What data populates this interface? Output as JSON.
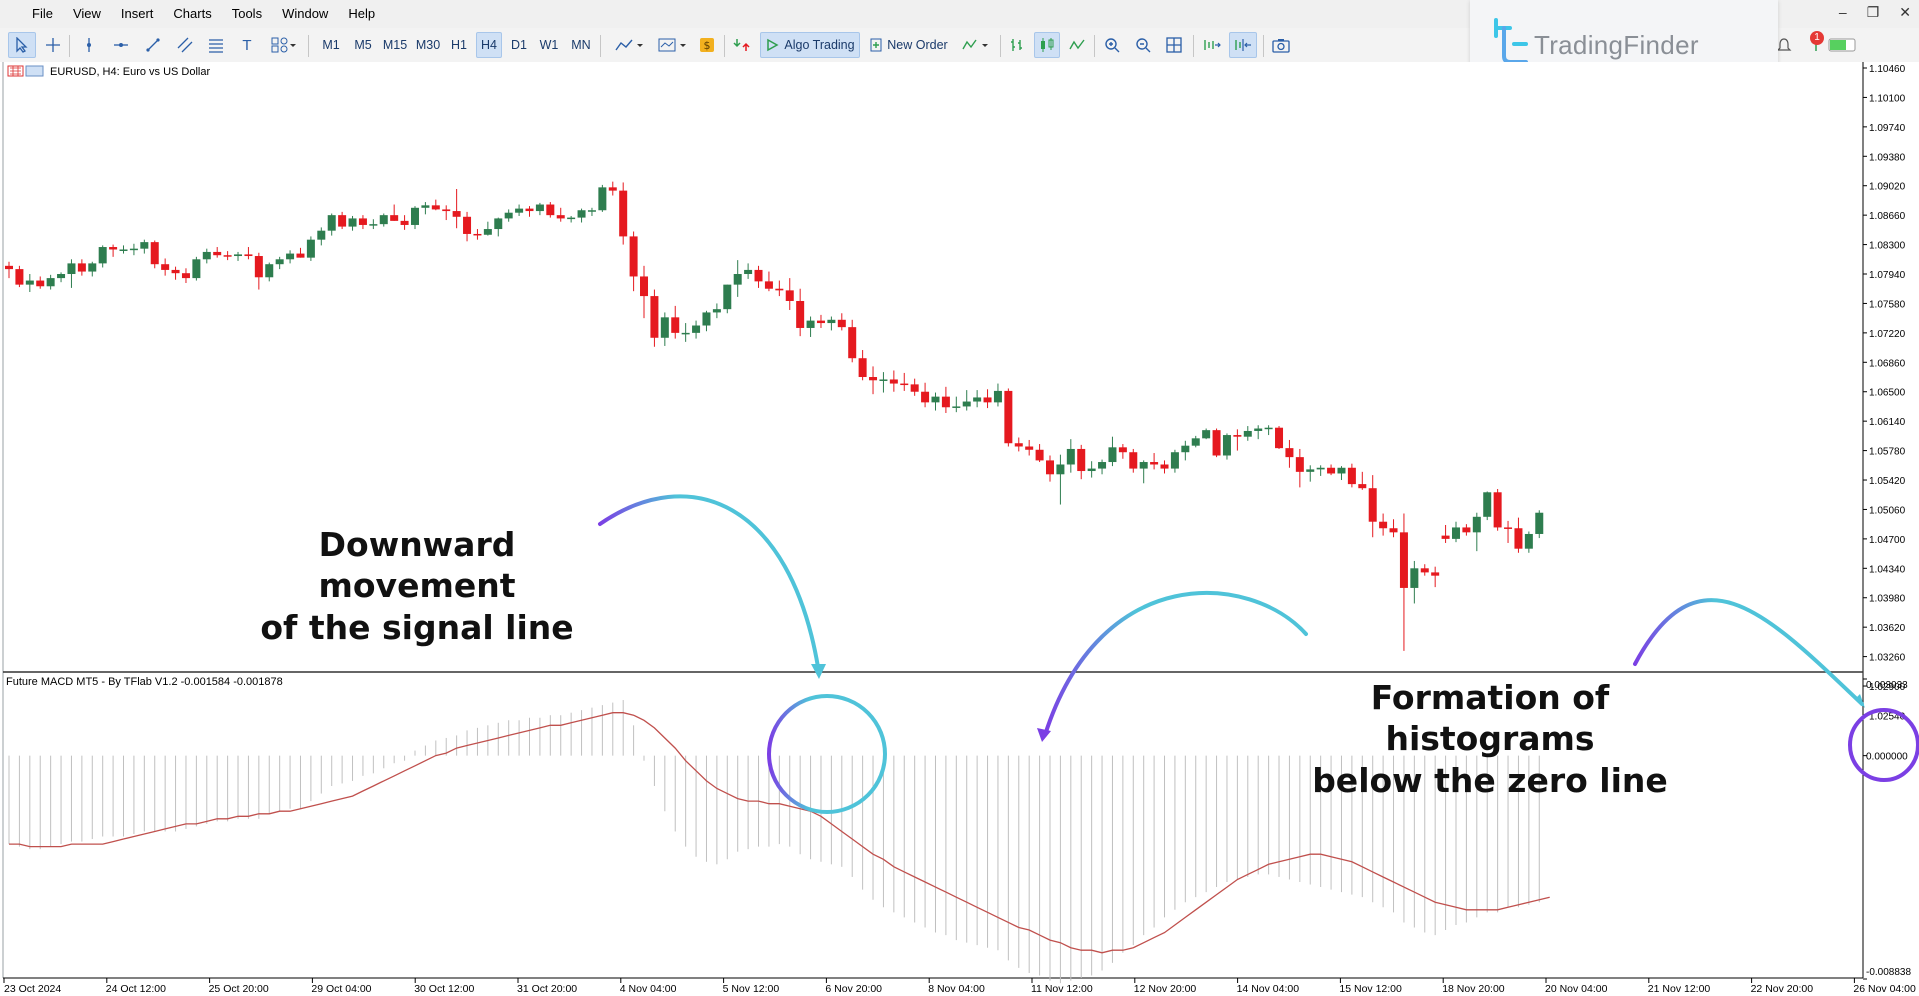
{
  "menu": [
    "File",
    "View",
    "Insert",
    "Charts",
    "Tools",
    "Window",
    "Help"
  ],
  "timeframes": [
    "M1",
    "M5",
    "M15",
    "M30",
    "H1",
    "H4",
    "D1",
    "W1",
    "MN"
  ],
  "active_timeframe": "H4",
  "toolbar": {
    "algo_trading": "Algo Trading",
    "new_order": "New Order"
  },
  "logo": {
    "text": "TradingFinder",
    "badge": "1"
  },
  "chart_header": "EURUSD, H4:  Euro vs US Dollar",
  "indicator_header": "Future MACD MT5 - By TFlab V1.2 -0.001584 -0.001878",
  "price_ticks": [
    "1.10460",
    "1.10100",
    "1.09740",
    "1.09380",
    "1.09020",
    "1.08660",
    "1.08300",
    "1.07940",
    "1.07580",
    "1.07220",
    "1.06860",
    "1.06500",
    "1.06140",
    "1.05780",
    "1.05420",
    "1.05060",
    "1.04700",
    "1.04340",
    "1.03980",
    "1.03620",
    "1.03260",
    "1.02900",
    "1.02540"
  ],
  "indicator_ticks": [
    "0.003033",
    "0.000000",
    "-0.008838"
  ],
  "time_ticks": [
    "23 Oct 2024",
    "24 Oct 12:00",
    "25 Oct 20:00",
    "29 Oct 04:00",
    "30 Oct 12:00",
    "31 Oct 20:00",
    "4 Nov 04:00",
    "5 Nov 12:00",
    "6 Nov 20:00",
    "8 Nov 04:00",
    "11 Nov 12:00",
    "12 Nov 20:00",
    "14 Nov 04:00",
    "15 Nov 12:00",
    "18 Nov 20:00",
    "20 Nov 04:00",
    "21 Nov 12:00",
    "22 Nov 20:00",
    "26 Nov 04:00"
  ],
  "annotations": {
    "signal_line": [
      "Downward movement",
      "of the signal line"
    ],
    "histograms": [
      "Formation of histograms",
      "below the zero line"
    ]
  },
  "colors": {
    "bull": "#2e7d4f",
    "bear": "#e5191f",
    "signal": "#c0504d",
    "histogram": "#c0c0c0",
    "arrow": "#4fc3d9",
    "arrow_accent": "#7b3fe4"
  },
  "chart_data": {
    "type": "candlestick",
    "symbol": "EURUSD",
    "timeframe": "H4",
    "ylim": [
      1.0246,
      1.1046
    ],
    "candles": [
      [
        1.0804,
        1.0809,
        1.0789,
        1.08
      ],
      [
        1.08,
        1.0804,
        1.0778,
        1.0781
      ],
      [
        1.0781,
        1.0794,
        1.0772,
        1.0786
      ],
      [
        1.0786,
        1.0791,
        1.0776,
        1.0779
      ],
      [
        1.0779,
        1.0793,
        1.0775,
        1.0789
      ],
      [
        1.0789,
        1.0796,
        1.0784,
        1.0794
      ],
      [
        1.0794,
        1.0812,
        1.0777,
        1.0807
      ],
      [
        1.0807,
        1.0812,
        1.0792,
        1.0797
      ],
      [
        1.0797,
        1.0809,
        1.0791,
        1.0807
      ],
      [
        1.0807,
        1.0829,
        1.0802,
        1.0827
      ],
      [
        1.0827,
        1.083,
        1.0815,
        1.0824
      ],
      [
        1.0824,
        1.0829,
        1.0819,
        1.0824
      ],
      [
        1.0824,
        1.0831,
        1.0817,
        1.0825
      ],
      [
        1.0825,
        1.0836,
        1.0819,
        1.0833
      ],
      [
        1.0833,
        1.0835,
        1.0801,
        1.0806
      ],
      [
        1.0806,
        1.0813,
        1.0792,
        1.0799
      ],
      [
        1.0799,
        1.0803,
        1.0787,
        1.0795
      ],
      [
        1.0795,
        1.0801,
        1.0783,
        1.0789
      ],
      [
        1.0789,
        1.0815,
        1.0786,
        1.0812
      ],
      [
        1.0812,
        1.0825,
        1.0807,
        1.0821
      ],
      [
        1.0821,
        1.0827,
        1.0814,
        1.0817
      ],
      [
        1.0817,
        1.0822,
        1.0811,
        1.0816
      ],
      [
        1.0816,
        1.0821,
        1.081,
        1.0818
      ],
      [
        1.0818,
        1.0827,
        1.0812,
        1.0816
      ],
      [
        1.0816,
        1.082,
        1.0775,
        1.079
      ],
      [
        1.079,
        1.0808,
        1.0785,
        1.0806
      ],
      [
        1.0806,
        1.0815,
        1.08,
        1.0812
      ],
      [
        1.0812,
        1.0823,
        1.0807,
        1.0819
      ],
      [
        1.0819,
        1.0826,
        1.0814,
        1.0814
      ],
      [
        1.0814,
        1.084,
        1.081,
        1.0836
      ],
      [
        1.0836,
        1.0851,
        1.0829,
        1.0847
      ],
      [
        1.0847,
        1.0868,
        1.0841,
        1.0866
      ],
      [
        1.0866,
        1.087,
        1.0849,
        1.0852
      ],
      [
        1.0852,
        1.0865,
        1.0847,
        1.0862
      ],
      [
        1.0862,
        1.0866,
        1.0849,
        1.0854
      ],
      [
        1.0854,
        1.0861,
        1.0849,
        1.0855
      ],
      [
        1.0855,
        1.0868,
        1.0852,
        1.0866
      ],
      [
        1.0866,
        1.0879,
        1.0859,
        1.0859
      ],
      [
        1.0859,
        1.0866,
        1.0848,
        1.0854
      ],
      [
        1.0854,
        1.0877,
        1.0849,
        1.0875
      ],
      [
        1.0875,
        1.0882,
        1.0867,
        1.0878
      ],
      [
        1.0878,
        1.0885,
        1.0872,
        1.0873
      ],
      [
        1.0873,
        1.0878,
        1.086,
        1.0871
      ],
      [
        1.0871,
        1.0898,
        1.085,
        1.0864
      ],
      [
        1.0864,
        1.087,
        1.0834,
        1.0843
      ],
      [
        1.0843,
        1.0849,
        1.0836,
        1.0842
      ],
      [
        1.0842,
        1.0858,
        1.0841,
        1.0849
      ],
      [
        1.0849,
        1.0863,
        1.084,
        1.0862
      ],
      [
        1.0862,
        1.0873,
        1.0858,
        1.0869
      ],
      [
        1.0869,
        1.0879,
        1.0865,
        1.0874
      ],
      [
        1.0874,
        1.0877,
        1.0864,
        1.0871
      ],
      [
        1.0871,
        1.0881,
        1.0866,
        1.0879
      ],
      [
        1.0879,
        1.0882,
        1.0863,
        1.0866
      ],
      [
        1.0866,
        1.0875,
        1.0858,
        1.0862
      ],
      [
        1.0862,
        1.0865,
        1.0857,
        1.0863
      ],
      [
        1.0863,
        1.0874,
        1.0857,
        1.0872
      ],
      [
        1.0872,
        1.0875,
        1.0865,
        1.0872
      ],
      [
        1.0872,
        1.0903,
        1.087,
        1.09
      ],
      [
        1.09,
        1.0907,
        1.089,
        1.0896
      ],
      [
        1.0896,
        1.0906,
        1.083,
        1.084
      ],
      [
        1.084,
        1.0846,
        1.0773,
        1.0791
      ],
      [
        1.0791,
        1.0804,
        1.074,
        1.0767
      ],
      [
        1.0767,
        1.0775,
        1.0705,
        1.0716
      ],
      [
        1.0716,
        1.0747,
        1.0706,
        1.0741
      ],
      [
        1.0741,
        1.0755,
        1.0715,
        1.0722
      ],
      [
        1.0722,
        1.0734,
        1.0711,
        1.0722
      ],
      [
        1.0722,
        1.0737,
        1.0715,
        1.0731
      ],
      [
        1.0731,
        1.0749,
        1.0724,
        1.0747
      ],
      [
        1.0747,
        1.0758,
        1.074,
        1.0751
      ],
      [
        1.0751,
        1.0781,
        1.0746,
        1.0781
      ],
      [
        1.0781,
        1.0811,
        1.0766,
        1.0794
      ],
      [
        1.0794,
        1.0807,
        1.0788,
        1.0799
      ],
      [
        1.0799,
        1.0804,
        1.0777,
        1.0785
      ],
      [
        1.0785,
        1.0797,
        1.0773,
        1.0776
      ],
      [
        1.0776,
        1.0786,
        1.0767,
        1.0774
      ],
      [
        1.0774,
        1.0789,
        1.075,
        1.0761
      ],
      [
        1.0761,
        1.0776,
        1.0718,
        1.0728
      ],
      [
        1.0728,
        1.0742,
        1.0717,
        1.0737
      ],
      [
        1.0737,
        1.0744,
        1.0728,
        1.0734
      ],
      [
        1.0734,
        1.0742,
        1.0725,
        1.0738
      ],
      [
        1.0738,
        1.0746,
        1.0725,
        1.0729
      ],
      [
        1.0729,
        1.0738,
        1.0686,
        1.0691
      ],
      [
        1.0691,
        1.0701,
        1.0664,
        1.0668
      ],
      [
        1.0668,
        1.0681,
        1.0647,
        1.0664
      ],
      [
        1.0664,
        1.0674,
        1.0649,
        1.0665
      ],
      [
        1.0665,
        1.0676,
        1.065,
        1.066
      ],
      [
        1.066,
        1.0673,
        1.0651,
        1.0659
      ],
      [
        1.0659,
        1.0666,
        1.0645,
        1.065
      ],
      [
        1.065,
        1.0661,
        1.0631,
        1.0637
      ],
      [
        1.0637,
        1.0649,
        1.0627,
        1.0644
      ],
      [
        1.0644,
        1.0656,
        1.0624,
        1.0631
      ],
      [
        1.0631,
        1.0644,
        1.0625,
        1.0632
      ],
      [
        1.0632,
        1.0652,
        1.0627,
        1.0638
      ],
      [
        1.0638,
        1.0652,
        1.0631,
        1.0643
      ],
      [
        1.0643,
        1.0653,
        1.063,
        1.0637
      ],
      [
        1.0637,
        1.066,
        1.0632,
        1.0651
      ],
      [
        1.0651,
        1.0654,
        1.0583,
        1.0587
      ],
      [
        1.0587,
        1.0594,
        1.0577,
        1.0583
      ],
      [
        1.0583,
        1.0591,
        1.0572,
        1.0579
      ],
      [
        1.0579,
        1.0586,
        1.0564,
        1.0566
      ],
      [
        1.0566,
        1.0572,
        1.054,
        1.0549
      ],
      [
        1.0549,
        1.0573,
        1.0512,
        1.0561
      ],
      [
        1.0561,
        1.0592,
        1.0551,
        1.058
      ],
      [
        1.058,
        1.0585,
        1.0543,
        1.0553
      ],
      [
        1.0553,
        1.0565,
        1.0545,
        1.0556
      ],
      [
        1.0556,
        1.0567,
        1.0549,
        1.0564
      ],
      [
        1.0564,
        1.0595,
        1.0559,
        1.0582
      ],
      [
        1.0582,
        1.0586,
        1.0568,
        1.0576
      ],
      [
        1.0576,
        1.058,
        1.0551,
        1.0556
      ],
      [
        1.0556,
        1.0566,
        1.0538,
        1.0564
      ],
      [
        1.0564,
        1.0575,
        1.0555,
        1.0561
      ],
      [
        1.0561,
        1.0566,
        1.055,
        1.0556
      ],
      [
        1.0556,
        1.0579,
        1.0551,
        1.0576
      ],
      [
        1.0576,
        1.059,
        1.0566,
        1.0584
      ],
      [
        1.0584,
        1.0596,
        1.0582,
        1.0593
      ],
      [
        1.0593,
        1.0605,
        1.0592,
        1.0603
      ],
      [
        1.0603,
        1.0605,
        1.057,
        1.0572
      ],
      [
        1.0572,
        1.0599,
        1.0567,
        1.0597
      ],
      [
        1.0597,
        1.0604,
        1.0578,
        1.0595
      ],
      [
        1.0595,
        1.0608,
        1.059,
        1.0602
      ],
      [
        1.0602,
        1.0609,
        1.0592,
        1.0605
      ],
      [
        1.0605,
        1.0609,
        1.0597,
        1.0606
      ],
      [
        1.0606,
        1.0608,
        1.058,
        1.0581
      ],
      [
        1.0581,
        1.0591,
        1.0557,
        1.057
      ],
      [
        1.057,
        1.058,
        1.0533,
        1.0552
      ],
      [
        1.0552,
        1.056,
        1.054,
        1.0555
      ],
      [
        1.0555,
        1.056,
        1.0547,
        1.0557
      ],
      [
        1.0557,
        1.0561,
        1.0548,
        1.055
      ],
      [
        1.055,
        1.0559,
        1.0542,
        1.0557
      ],
      [
        1.0557,
        1.0562,
        1.0533,
        1.0537
      ],
      [
        1.0537,
        1.0552,
        1.053,
        1.0532
      ],
      [
        1.0532,
        1.0548,
        1.0472,
        1.0491
      ],
      [
        1.0491,
        1.0501,
        1.0474,
        1.0483
      ],
      [
        1.0483,
        1.0494,
        1.0472,
        1.0478
      ],
      [
        1.0478,
        1.0501,
        1.0333,
        1.041
      ],
      [
        1.041,
        1.0443,
        1.0391,
        1.0434
      ],
      [
        1.0434,
        1.0439,
        1.0425,
        1.0429
      ],
      [
        1.0429,
        1.0436,
        1.0411,
        1.0425
      ],
      [
        1.0474,
        1.0487,
        1.0465,
        1.047
      ],
      [
        1.047,
        1.0491,
        1.0466,
        1.0484
      ],
      [
        1.0484,
        1.0488,
        1.0474,
        1.0478
      ],
      [
        1.0478,
        1.0502,
        1.0455,
        1.0497
      ],
      [
        1.0497,
        1.0528,
        1.0493,
        1.0527
      ],
      [
        1.0527,
        1.0531,
        1.048,
        1.0484
      ],
      [
        1.0484,
        1.0492,
        1.0465,
        1.0483
      ],
      [
        1.0483,
        1.0496,
        1.0453,
        1.0458
      ],
      [
        1.0458,
        1.0479,
        1.0453,
        1.0476
      ],
      [
        1.0476,
        1.0505,
        1.0471,
        1.0502
      ]
    ],
    "indicator": {
      "name": "Future MACD MT5 - By TFlab V1.2",
      "values": [
        -0.001584,
        -0.001878
      ],
      "ylim": [
        -0.008838,
        0.003033
      ],
      "histogram": [
        -0.0035,
        -0.0036,
        -0.0037,
        -0.0037,
        -0.0036,
        -0.0035,
        -0.0034,
        -0.0034,
        -0.0033,
        -0.0032,
        -0.0032,
        -0.0032,
        -0.0031,
        -0.003,
        -0.003,
        -0.003,
        -0.003,
        -0.0029,
        -0.0028,
        -0.0027,
        -0.0026,
        -0.0026,
        -0.0025,
        -0.0025,
        -0.0025,
        -0.0023,
        -0.0022,
        -0.0021,
        -0.0021,
        -0.0018,
        -0.0015,
        -0.0012,
        -0.0011,
        -0.001,
        -0.0008,
        -0.0007,
        -0.0005,
        -0.0003,
        -0.0002,
        0.0002,
        0.0004,
        0.0006,
        0.0007,
        0.0008,
        0.001,
        0.0011,
        0.0012,
        0.0013,
        0.0014,
        0.0014,
        0.0015,
        0.0015,
        0.0016,
        0.0016,
        0.0017,
        0.0018,
        0.0019,
        0.002,
        0.0021,
        0.0022,
        0.0012,
        -0.0002,
        -0.0012,
        -0.0022,
        -0.003,
        -0.0036,
        -0.004,
        -0.0042,
        -0.0043,
        -0.0041,
        -0.0038,
        -0.0037,
        -0.0036,
        -0.0036,
        -0.0035,
        -0.0036,
        -0.0039,
        -0.0041,
        -0.0042,
        -0.0043,
        -0.0044,
        -0.0048,
        -0.0053,
        -0.0057,
        -0.006,
        -0.0062,
        -0.0064,
        -0.0066,
        -0.0068,
        -0.007,
        -0.0071,
        -0.0073,
        -0.0074,
        -0.0075,
        -0.0076,
        -0.0077,
        -0.0081,
        -0.0084,
        -0.0086,
        -0.0087,
        -0.0089,
        -0.009,
        -0.0089,
        -0.0088,
        -0.0087,
        -0.0085,
        -0.0082,
        -0.0078,
        -0.0075,
        -0.0071,
        -0.0068,
        -0.0064,
        -0.0061,
        -0.0058,
        -0.0056,
        -0.0054,
        -0.0052,
        -0.005,
        -0.0049,
        -0.0048,
        -0.0047,
        -0.0047,
        -0.0048,
        -0.0049,
        -0.005,
        -0.0051,
        -0.0052,
        -0.0053,
        -0.0054,
        -0.0055,
        -0.0056,
        -0.0058,
        -0.006,
        -0.0062,
        -0.0066,
        -0.0068,
        -0.007,
        -0.0071,
        -0.0069,
        -0.0067,
        -0.0066,
        -0.0064,
        -0.0062,
        -0.0062,
        -0.006,
        -0.006,
        -0.0059,
        -0.0058
      ],
      "signal": [
        -0.0035,
        -0.0035,
        -0.0036,
        -0.0036,
        -0.0036,
        -0.0036,
        -0.0035,
        -0.0035,
        -0.0035,
        -0.0035,
        -0.0034,
        -0.0033,
        -0.0032,
        -0.0031,
        -0.003,
        -0.0029,
        -0.0028,
        -0.0027,
        -0.0027,
        -0.0026,
        -0.0025,
        -0.0025,
        -0.0024,
        -0.0024,
        -0.0023,
        -0.0023,
        -0.0022,
        -0.0022,
        -0.0021,
        -0.002,
        -0.0019,
        -0.0018,
        -0.0017,
        -0.0016,
        -0.0014,
        -0.0012,
        -0.001,
        -0.0008,
        -0.0006,
        -0.0004,
        -0.0002,
        0.0,
        0.0001,
        0.0003,
        0.0004,
        0.0005,
        0.0006,
        0.0007,
        0.0008,
        0.0009,
        0.001,
        0.0011,
        0.0012,
        0.0012,
        0.0013,
        0.0014,
        0.0015,
        0.0016,
        0.0017,
        0.0017,
        0.0016,
        0.0014,
        0.0011,
        0.0007,
        0.0003,
        -0.0002,
        -0.0006,
        -0.001,
        -0.0013,
        -0.0015,
        -0.0017,
        -0.0018,
        -0.0018,
        -0.0019,
        -0.0019,
        -0.002,
        -0.0021,
        -0.0022,
        -0.0024,
        -0.0027,
        -0.003,
        -0.0033,
        -0.0036,
        -0.0039,
        -0.0041,
        -0.0044,
        -0.0046,
        -0.0048,
        -0.005,
        -0.0052,
        -0.0054,
        -0.0056,
        -0.0058,
        -0.006,
        -0.0062,
        -0.0064,
        -0.0066,
        -0.0068,
        -0.0069,
        -0.0071,
        -0.0073,
        -0.0074,
        -0.0076,
        -0.0077,
        -0.0077,
        -0.0078,
        -0.0077,
        -0.0077,
        -0.0076,
        -0.0074,
        -0.0072,
        -0.007,
        -0.0067,
        -0.0064,
        -0.0061,
        -0.0058,
        -0.0055,
        -0.0052,
        -0.0049,
        -0.0047,
        -0.0045,
        -0.0043,
        -0.0042,
        -0.0041,
        -0.004,
        -0.0039,
        -0.0039,
        -0.004,
        -0.0041,
        -0.0042,
        -0.0044,
        -0.0046,
        -0.0048,
        -0.005,
        -0.0052,
        -0.0054,
        -0.0056,
        -0.0058,
        -0.0059,
        -0.006,
        -0.0061,
        -0.0061,
        -0.0061,
        -0.0061,
        -0.006,
        -0.0059,
        -0.0058,
        -0.0057,
        -0.0056
      ]
    }
  }
}
